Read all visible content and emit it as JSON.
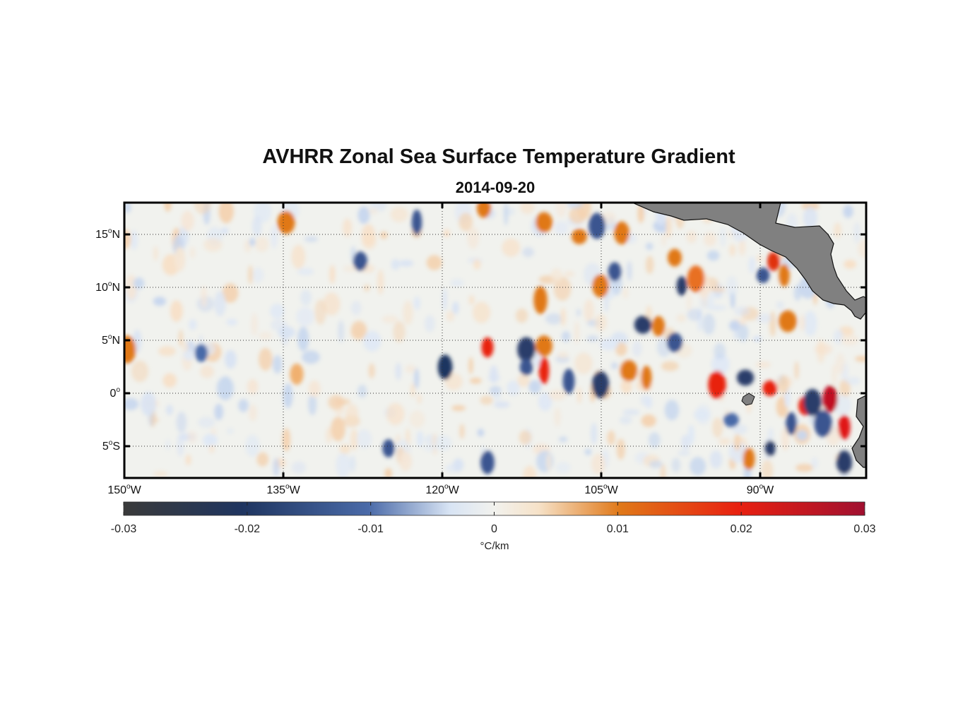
{
  "title": "AVHRR Zonal Sea Surface Temperature Gradient",
  "subtitle": "2014-09-20",
  "map": {
    "lon_range": [
      -150,
      -80
    ],
    "lat_range": [
      -8,
      18
    ],
    "grid": "on",
    "land_color": "#808080",
    "lat_ticks": [
      {
        "value": 15,
        "deg": "15",
        "hemi": "N"
      },
      {
        "value": 10,
        "deg": "10",
        "hemi": "N"
      },
      {
        "value": 5,
        "deg": "5",
        "hemi": "N"
      },
      {
        "value": 0,
        "deg": "0",
        "hemi": ""
      },
      {
        "value": -5,
        "deg": "5",
        "hemi": "S"
      }
    ],
    "lon_ticks": [
      {
        "value": -150,
        "deg": "150",
        "hemi": "W"
      },
      {
        "value": -135,
        "deg": "135",
        "hemi": "W"
      },
      {
        "value": -120,
        "deg": "120",
        "hemi": "W"
      },
      {
        "value": -105,
        "deg": "105",
        "hemi": "W"
      },
      {
        "value": -90,
        "deg": "90",
        "hemi": "W"
      }
    ],
    "degree_symbol": "o"
  },
  "colorbar": {
    "range": [
      -0.03,
      0.03
    ],
    "ticks": [
      "-0.03",
      "-0.02",
      "-0.01",
      "0",
      "0.01",
      "0.02",
      "0.03"
    ],
    "unit": "°C/km",
    "colors": [
      "#3a3a3a",
      "#1f3560",
      "#4a6aa8",
      "#d8e4f4",
      "#f2f2ee",
      "#f6e2c8",
      "#e07818",
      "#e82010",
      "#a01030"
    ]
  }
}
